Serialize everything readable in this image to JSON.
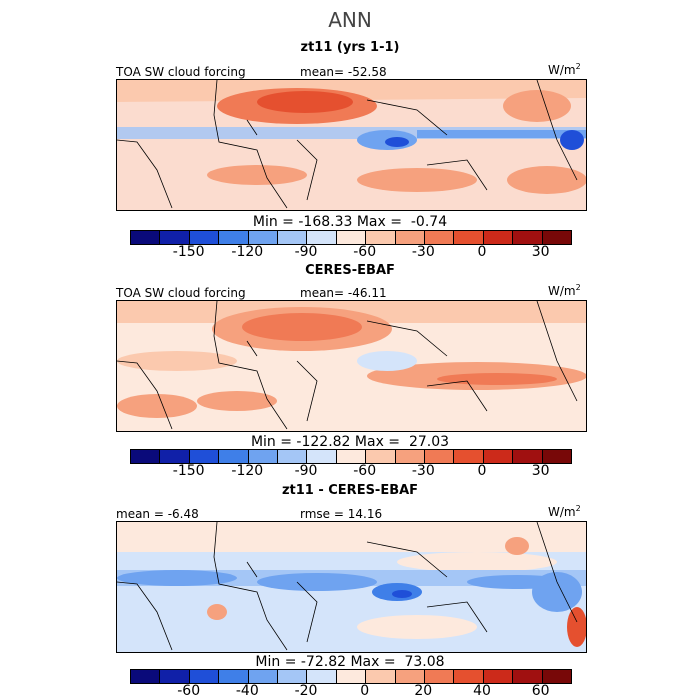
{
  "title": "ANN",
  "panels": [
    {
      "title": "zt11 (yrs 1-1)",
      "left_label": "TOA SW cloud forcing",
      "center_label": "mean= -52.58",
      "units": "W/m",
      "units_sup": "2",
      "minmax": "Min = -168.33 Max =  -0.74",
      "ticks": [
        "-150",
        "-120",
        "-90",
        "-60",
        "-30",
        "0",
        "30"
      ]
    },
    {
      "title": "CERES-EBAF",
      "left_label": "TOA SW cloud forcing",
      "center_label": "mean= -46.11",
      "units": "W/m",
      "units_sup": "2",
      "minmax": "Min = -122.82 Max =  27.03",
      "ticks": [
        "-150",
        "-120",
        "-90",
        "-60",
        "-30",
        "0",
        "30"
      ]
    },
    {
      "title": "zt11 - CERES-EBAF",
      "left_label": "mean =  -6.48",
      "center_label": "rmse =  14.16",
      "units": "W/m",
      "units_sup": "2",
      "minmax": "Min = -72.82 Max =  73.08",
      "ticks": [
        "-60",
        "-40",
        "-20",
        "0",
        "20",
        "40",
        "60"
      ]
    }
  ],
  "colorbar_colors": [
    "#0a0a7a",
    "#1020a8",
    "#1f4fd8",
    "#3f7fe8",
    "#6fa3f0",
    "#a4c6f6",
    "#d4e4fa",
    "#fde9dd",
    "#fbc9ae",
    "#f6a17e",
    "#f07a55",
    "#e5502f",
    "#cc2a1a",
    "#a01010",
    "#780808"
  ]
}
